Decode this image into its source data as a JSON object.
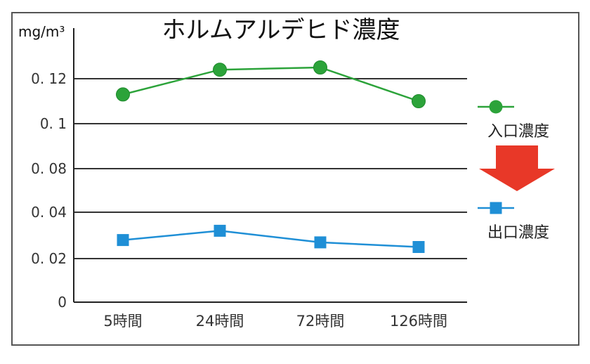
{
  "chart_data": {
    "type": "line",
    "title": "ホルムアルデヒド濃度",
    "ylabel": "mg/m³",
    "categories": [
      "5時間",
      "24時間",
      "72時間",
      "126時間"
    ],
    "y_ticks": [
      "0",
      "0. 02",
      "0. 04",
      "0. 08",
      "0. 1",
      "0. 12"
    ],
    "series": [
      {
        "name": "入口濃度",
        "values": [
          0.113,
          0.124,
          0.125,
          0.11
        ],
        "color": "#2ca33a",
        "marker": "circle"
      },
      {
        "name": "出口濃度",
        "values": [
          0.028,
          0.032,
          0.027,
          0.025
        ],
        "color": "#1f8fd6",
        "marker": "square"
      }
    ],
    "legend_position": "right",
    "arrow_color": "#e83828",
    "grid": true
  }
}
